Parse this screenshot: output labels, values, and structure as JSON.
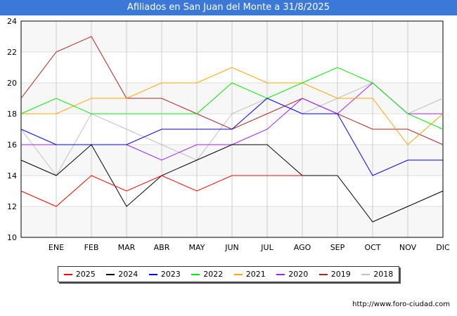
{
  "title": "Afiliados en San Juan del Monte a 31/8/2025",
  "url": "http://www.foro-ciudad.com",
  "chart_data": {
    "type": "line",
    "title": "Afiliados en San Juan del Monte a 31/8/2025",
    "categories": [
      "",
      "ENE",
      "FEB",
      "MAR",
      "ABR",
      "MAY",
      "JUN",
      "JUL",
      "AGO",
      "SEP",
      "OCT",
      "NOV",
      "DIC"
    ],
    "ylim": [
      10,
      24
    ],
    "yticks": [
      10,
      12,
      14,
      16,
      18,
      20,
      22,
      24
    ],
    "grid": true,
    "legend_position": "bottom",
    "series": [
      {
        "name": "2025",
        "color": "#ff0000",
        "values": [
          13,
          12,
          14,
          13,
          14,
          13,
          14,
          14,
          14,
          null,
          null,
          null,
          null
        ]
      },
      {
        "name": "2024",
        "color": "#000000",
        "values": [
          15,
          14,
          16,
          12,
          14,
          15,
          16,
          16,
          14,
          14,
          11,
          12,
          13
        ]
      },
      {
        "name": "2023",
        "color": "#0000ff",
        "values": [
          17,
          16,
          16,
          16,
          17,
          17,
          17,
          19,
          18,
          18,
          14,
          15,
          15
        ]
      },
      {
        "name": "2022",
        "color": "#00ee00",
        "values": [
          18,
          19,
          18,
          18,
          18,
          18,
          20,
          19,
          20,
          21,
          20,
          18,
          17
        ]
      },
      {
        "name": "2021",
        "color": "#ffa500",
        "values": [
          18,
          18,
          19,
          19,
          20,
          20,
          21,
          20,
          20,
          19,
          19,
          16,
          18
        ]
      },
      {
        "name": "2020",
        "color": "#a020f0",
        "values": [
          16,
          16,
          16,
          16,
          15,
          16,
          16,
          17,
          19,
          18,
          20,
          18,
          18
        ]
      },
      {
        "name": "2019",
        "color": "#b22222",
        "values": [
          19,
          22,
          23,
          19,
          19,
          18,
          17,
          18,
          19,
          18,
          17,
          17,
          16
        ]
      },
      {
        "name": "2018",
        "color": "#c0c0c0",
        "values": [
          17,
          14,
          18,
          17,
          16,
          15,
          18,
          19,
          18,
          19,
          20,
          18,
          19
        ]
      }
    ]
  }
}
